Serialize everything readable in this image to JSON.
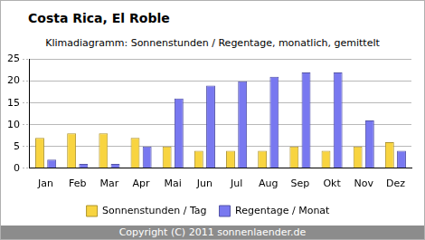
{
  "chart_data": {
    "type": "bar",
    "title": "Costa Rica, El Roble",
    "subtitle": "Klimadiagramm: Sonnenstunden / Regentage, monatlich, gemittelt",
    "footer": "Copyright (C) 2011 sonnenlaender.de",
    "categories": [
      "Jan",
      "Feb",
      "Mar",
      "Apr",
      "Mai",
      "Jun",
      "Jul",
      "Aug",
      "Sep",
      "Okt",
      "Nov",
      "Dez"
    ],
    "series": [
      {
        "name": "Sonnenstunden / Tag",
        "color": "#f8d440",
        "values": [
          7,
          8,
          8,
          7,
          5,
          4,
          4,
          4,
          5,
          4,
          5,
          6
        ]
      },
      {
        "name": "Regentage / Monat",
        "color": "#7878f0",
        "values": [
          2,
          1,
          1,
          5,
          16,
          19,
          20,
          21,
          22,
          22,
          11,
          4
        ]
      }
    ],
    "ylim": [
      0,
      25
    ],
    "yticks": [
      0,
      5,
      10,
      15,
      20,
      25
    ],
    "grid": true,
    "legend": "bottom"
  }
}
